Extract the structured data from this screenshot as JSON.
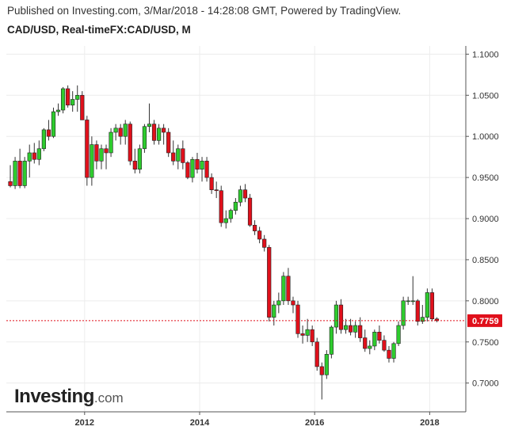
{
  "header": {
    "published": "Published on Investing.com, 3/Mar/2018 - 14:28:08 GMT, Powered by TradingView.",
    "title": "CAD/USD, Real-timeFX:CAD/USD, M"
  },
  "logo": {
    "brand": "Investing",
    "suffix": ".com"
  },
  "colors": {
    "up": "#2ecc2e",
    "down": "#e0101b",
    "wick": "#333333",
    "grid": "#ececec",
    "price_line": "#e0101b",
    "price_label_bg": "#e0101b"
  },
  "chart_data": {
    "type": "candlestick",
    "ylim": [
      0.665,
      1.11
    ],
    "y_ticks": [
      "1.1000",
      "1.0500",
      "1.0000",
      "0.9500",
      "0.9000",
      "0.8500",
      "0.8000",
      "0.7500",
      "0.7000"
    ],
    "x_ticks": [
      "2012",
      "2014",
      "2016",
      "2018"
    ],
    "current_price": "0.7759",
    "grid": true,
    "candles": [
      [
        0.945,
        0.965,
        0.938,
        0.94
      ],
      [
        0.94,
        0.975,
        0.936,
        0.97
      ],
      [
        0.97,
        0.985,
        0.937,
        0.94
      ],
      [
        0.94,
        0.975,
        0.937,
        0.97
      ],
      [
        0.97,
        0.99,
        0.95,
        0.98
      ],
      [
        0.98,
        0.992,
        0.967,
        0.972
      ],
      [
        0.972,
        0.995,
        0.965,
        0.985
      ],
      [
        0.985,
        1.01,
        0.982,
        1.008
      ],
      [
        1.008,
        1.02,
        0.995,
        1.0
      ],
      [
        1.0,
        1.035,
        0.998,
        1.03
      ],
      [
        1.03,
        1.04,
        1.025,
        1.032
      ],
      [
        1.032,
        1.06,
        1.028,
        1.058
      ],
      [
        1.058,
        1.062,
        1.035,
        1.038
      ],
      [
        1.038,
        1.055,
        1.03,
        1.045
      ],
      [
        1.045,
        1.062,
        1.03,
        1.05
      ],
      [
        1.05,
        1.055,
        1.02,
        1.02
      ],
      [
        1.02,
        1.025,
        0.94,
        0.95
      ],
      [
        0.95,
        1.0,
        0.94,
        0.99
      ],
      [
        0.99,
        0.995,
        0.96,
        0.97
      ],
      [
        0.97,
        0.99,
        0.96,
        0.985
      ],
      [
        0.985,
        0.99,
        0.96,
        0.98
      ],
      [
        0.98,
        1.01,
        0.975,
        1.005
      ],
      [
        1.005,
        1.015,
        0.995,
        1.01
      ],
      [
        1.01,
        1.015,
        0.99,
        1.0
      ],
      [
        1.0,
        1.02,
        0.99,
        1.015
      ],
      [
        1.015,
        1.018,
        0.965,
        0.97
      ],
      [
        0.97,
        0.985,
        0.955,
        0.96
      ],
      [
        0.96,
        0.99,
        0.955,
        0.985
      ],
      [
        0.985,
        1.015,
        0.98,
        1.012
      ],
      [
        1.012,
        1.04,
        1.005,
        1.015
      ],
      [
        1.015,
        1.02,
        0.99,
        0.995
      ],
      [
        0.995,
        1.015,
        0.99,
        1.01
      ],
      [
        1.01,
        1.015,
        0.99,
        1.005
      ],
      [
        1.005,
        1.01,
        0.975,
        0.98
      ],
      [
        0.98,
        0.995,
        0.965,
        0.97
      ],
      [
        0.97,
        0.99,
        0.96,
        0.985
      ],
      [
        0.985,
        0.995,
        0.96,
        0.968
      ],
      [
        0.968,
        0.97,
        0.948,
        0.95
      ],
      [
        0.95,
        0.975,
        0.944,
        0.972
      ],
      [
        0.972,
        0.98,
        0.955,
        0.96
      ],
      [
        0.96,
        0.975,
        0.945,
        0.97
      ],
      [
        0.97,
        0.975,
        0.945,
        0.95
      ],
      [
        0.95,
        0.955,
        0.93,
        0.935
      ],
      [
        0.935,
        0.945,
        0.925,
        0.934
      ],
      [
        0.934,
        0.94,
        0.89,
        0.895
      ],
      [
        0.895,
        0.91,
        0.888,
        0.9
      ],
      [
        0.9,
        0.912,
        0.895,
        0.91
      ],
      [
        0.91,
        0.925,
        0.905,
        0.92
      ],
      [
        0.92,
        0.94,
        0.915,
        0.935
      ],
      [
        0.935,
        0.942,
        0.92,
        0.925
      ],
      [
        0.925,
        0.93,
        0.89,
        0.892
      ],
      [
        0.892,
        0.898,
        0.88,
        0.885
      ],
      [
        0.885,
        0.89,
        0.87,
        0.875
      ],
      [
        0.875,
        0.88,
        0.86,
        0.865
      ],
      [
        0.865,
        0.868,
        0.775,
        0.78
      ],
      [
        0.78,
        0.8,
        0.77,
        0.795
      ],
      [
        0.795,
        0.81,
        0.785,
        0.8
      ],
      [
        0.8,
        0.835,
        0.795,
        0.83
      ],
      [
        0.83,
        0.84,
        0.795,
        0.8
      ],
      [
        0.8,
        0.805,
        0.785,
        0.795
      ],
      [
        0.795,
        0.8,
        0.755,
        0.76
      ],
      [
        0.76,
        0.77,
        0.748,
        0.758
      ],
      [
        0.758,
        0.778,
        0.75,
        0.765
      ],
      [
        0.765,
        0.77,
        0.745,
        0.75
      ],
      [
        0.75,
        0.755,
        0.715,
        0.72
      ],
      [
        0.72,
        0.725,
        0.68,
        0.71
      ],
      [
        0.71,
        0.74,
        0.705,
        0.735
      ],
      [
        0.735,
        0.77,
        0.73,
        0.768
      ],
      [
        0.768,
        0.8,
        0.76,
        0.795
      ],
      [
        0.795,
        0.802,
        0.76,
        0.765
      ],
      [
        0.765,
        0.778,
        0.76,
        0.77
      ],
      [
        0.77,
        0.778,
        0.758,
        0.762
      ],
      [
        0.762,
        0.775,
        0.755,
        0.77
      ],
      [
        0.77,
        0.78,
        0.75,
        0.755
      ],
      [
        0.755,
        0.765,
        0.738,
        0.742
      ],
      [
        0.742,
        0.752,
        0.735,
        0.745
      ],
      [
        0.745,
        0.765,
        0.74,
        0.762
      ],
      [
        0.762,
        0.77,
        0.748,
        0.752
      ],
      [
        0.752,
        0.758,
        0.738,
        0.74
      ],
      [
        0.74,
        0.745,
        0.725,
        0.73
      ],
      [
        0.73,
        0.75,
        0.725,
        0.748
      ],
      [
        0.748,
        0.775,
        0.745,
        0.77
      ],
      [
        0.77,
        0.805,
        0.765,
        0.8
      ],
      [
        0.8,
        0.805,
        0.795,
        0.8
      ],
      [
        0.8,
        0.83,
        0.795,
        0.8
      ],
      [
        0.8,
        0.802,
        0.77,
        0.775
      ],
      [
        0.775,
        0.795,
        0.772,
        0.78
      ],
      [
        0.78,
        0.815,
        0.775,
        0.81
      ],
      [
        0.81,
        0.815,
        0.775,
        0.778
      ],
      [
        0.778,
        0.78,
        0.774,
        0.7759
      ]
    ]
  }
}
